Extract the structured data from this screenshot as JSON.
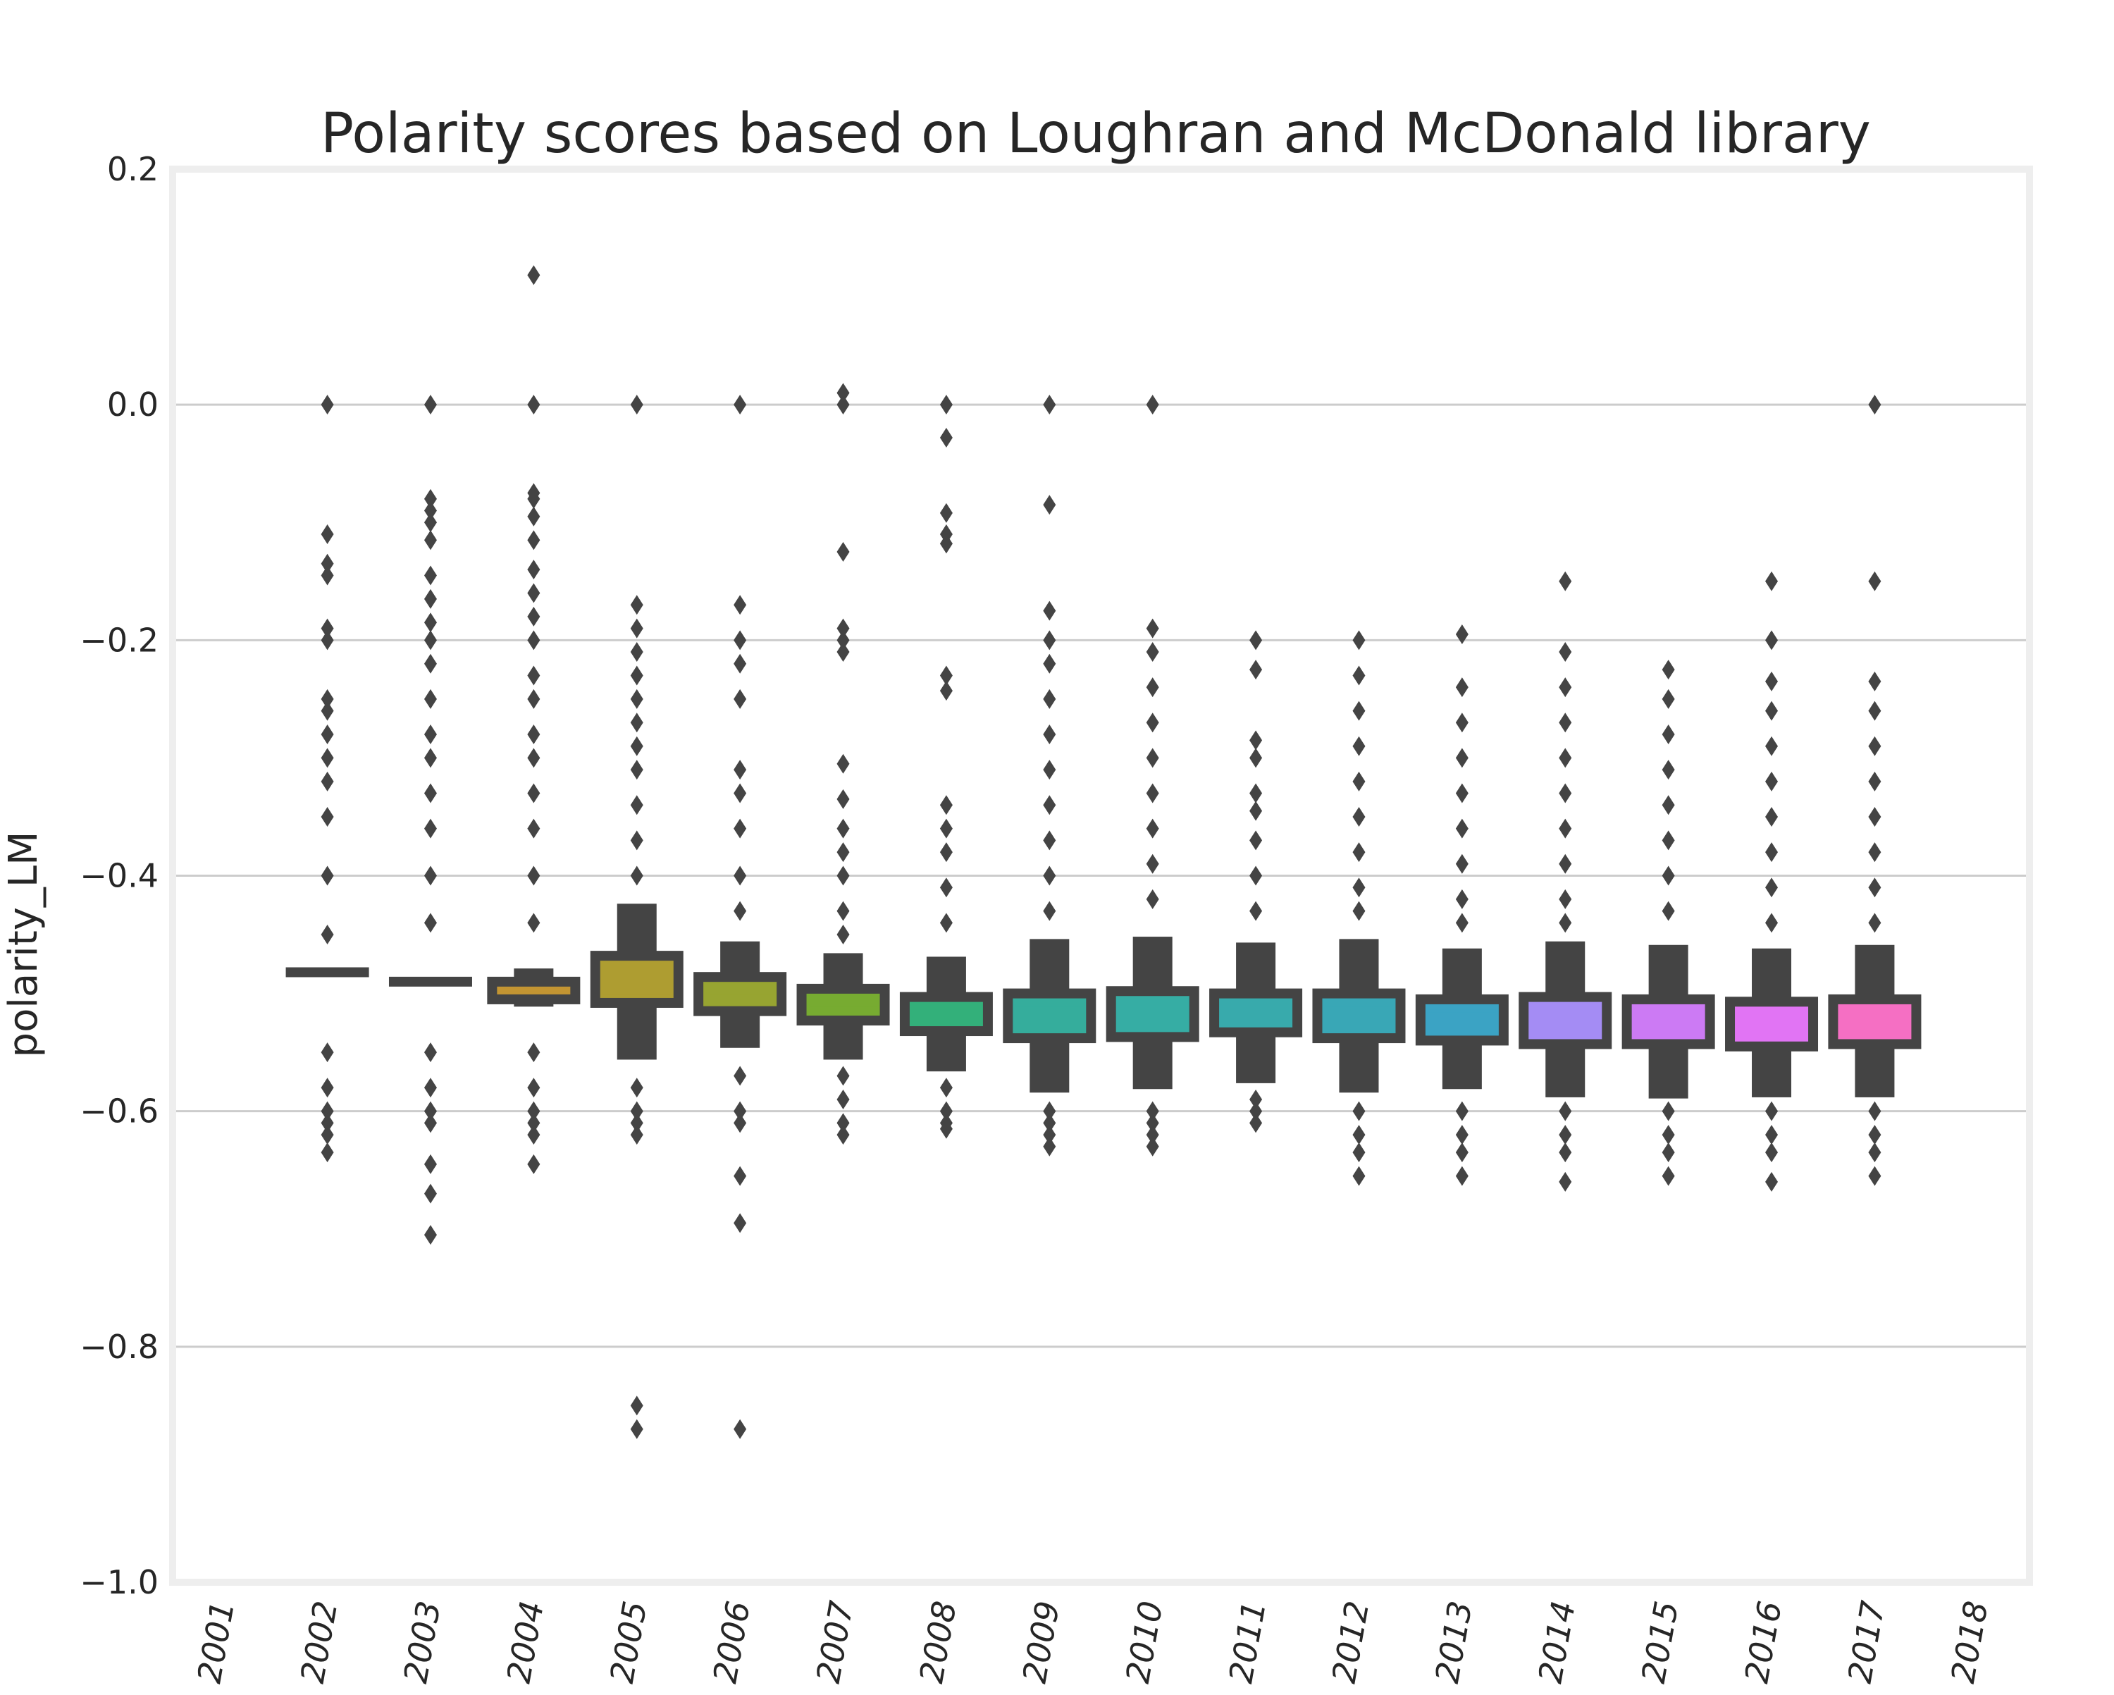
{
  "chart_data": {
    "type": "boxen",
    "title": "Polarity scores based on Loughran and McDonald library",
    "xlabel": "",
    "ylabel": "polarity_LM",
    "ylim": [
      -1.0,
      0.2
    ],
    "yticks": [
      0.2,
      0.0,
      -0.2,
      -0.4,
      -0.6,
      -0.8,
      -1.0
    ],
    "ytick_labels": [
      "0.2",
      "0.0",
      "−0.2",
      "−0.4",
      "−0.6",
      "−0.8",
      "−1.0"
    ],
    "grid": "horizontal",
    "categories": [
      "2001",
      "2002",
      "2003",
      "2004",
      "2005",
      "2006",
      "2007",
      "2008",
      "2009",
      "2010",
      "2011",
      "2012",
      "2013",
      "2014",
      "2015",
      "2016",
      "2017",
      "2018"
    ],
    "series": [
      {
        "category": "2001",
        "color": "#f77189",
        "boxes": [],
        "median": null,
        "outliers": []
      },
      {
        "category": "2002",
        "color": "#f7754f",
        "boxes": [
          [
            -0.482,
            -0.481
          ]
        ],
        "median": -0.482,
        "outliers": [
          0.0,
          -0.11,
          -0.135,
          -0.145,
          -0.19,
          -0.2,
          -0.25,
          -0.26,
          -0.28,
          -0.3,
          -0.32,
          -0.35,
          -0.4,
          -0.45,
          -0.55,
          -0.58,
          -0.6,
          -0.61,
          -0.62,
          -0.635
        ]
      },
      {
        "category": "2003",
        "color": "#dc8932",
        "boxes": [
          [
            -0.49,
            -0.489
          ]
        ],
        "median": -0.49,
        "outliers": [
          0.0,
          -0.08,
          -0.09,
          -0.1,
          -0.115,
          -0.145,
          -0.165,
          -0.185,
          -0.2,
          -0.22,
          -0.25,
          -0.28,
          -0.3,
          -0.33,
          -0.36,
          -0.4,
          -0.44,
          -0.55,
          -0.58,
          -0.6,
          -0.61,
          -0.645,
          -0.67,
          -0.705
        ]
      },
      {
        "category": "2004",
        "color": "#c39532",
        "boxes": [
          [
            -0.51,
            -0.48
          ],
          [
            -0.505,
            -0.49
          ]
        ],
        "median": -0.497,
        "outliers": [
          0.11,
          0.0,
          -0.075,
          -0.08,
          -0.095,
          -0.115,
          -0.14,
          -0.16,
          -0.18,
          -0.2,
          -0.23,
          -0.25,
          -0.28,
          -0.3,
          -0.33,
          -0.36,
          -0.4,
          -0.44,
          -0.55,
          -0.58,
          -0.6,
          -0.61,
          -0.62,
          -0.645
        ]
      },
      {
        "category": "2005",
        "color": "#ae9d31",
        "boxes": [
          [
            -0.555,
            -0.425
          ],
          [
            -0.508,
            -0.468
          ]
        ],
        "median": -0.5,
        "outliers": [
          0.0,
          -0.17,
          -0.19,
          -0.21,
          -0.23,
          -0.25,
          -0.27,
          -0.29,
          -0.31,
          -0.34,
          -0.37,
          -0.4,
          -0.58,
          -0.6,
          -0.61,
          -0.62,
          -0.85,
          -0.87
        ]
      },
      {
        "category": "2006",
        "color": "#97a431",
        "boxes": [
          [
            -0.545,
            -0.457
          ],
          [
            -0.515,
            -0.486
          ]
        ],
        "median": -0.5,
        "outliers": [
          0.0,
          -0.17,
          -0.2,
          -0.22,
          -0.25,
          -0.31,
          -0.33,
          -0.36,
          -0.4,
          -0.43,
          -0.57,
          -0.6,
          -0.61,
          -0.655,
          -0.695,
          -0.87
        ]
      },
      {
        "category": "2007",
        "color": "#77ab31",
        "boxes": [
          [
            -0.555,
            -0.467
          ],
          [
            -0.523,
            -0.496
          ]
        ],
        "median": -0.51,
        "outliers": [
          0.01,
          0.0,
          -0.125,
          -0.19,
          -0.2,
          -0.21,
          -0.305,
          -0.335,
          -0.36,
          -0.38,
          -0.4,
          -0.43,
          -0.45,
          -0.57,
          -0.59,
          -0.61,
          -0.62
        ]
      },
      {
        "category": "2008",
        "color": "#33b07a",
        "boxes": [
          [
            -0.565,
            -0.47
          ],
          [
            -0.532,
            -0.503
          ]
        ],
        "median": -0.52,
        "outliers": [
          0.0,
          -0.028,
          -0.092,
          -0.11,
          -0.118,
          -0.23,
          -0.243,
          -0.34,
          -0.36,
          -0.38,
          -0.41,
          -0.44,
          -0.58,
          -0.6,
          -0.61,
          -0.615
        ]
      },
      {
        "category": "2009",
        "color": "#35ad9c",
        "boxes": [
          [
            -0.583,
            -0.455
          ],
          [
            -0.538,
            -0.5
          ]
        ],
        "median": -0.51,
        "outliers": [
          0.0,
          -0.085,
          -0.175,
          -0.2,
          -0.22,
          -0.25,
          -0.28,
          -0.31,
          -0.34,
          -0.37,
          -0.4,
          -0.43,
          -0.6,
          -0.61,
          -0.62,
          -0.63
        ]
      },
      {
        "category": "2010",
        "color": "#36ada4",
        "boxes": [
          [
            -0.58,
            -0.453
          ],
          [
            -0.537,
            -0.498
          ]
        ],
        "median": -0.508,
        "outliers": [
          0.0,
          -0.19,
          -0.21,
          -0.24,
          -0.27,
          -0.3,
          -0.33,
          -0.36,
          -0.39,
          -0.42,
          -0.6,
          -0.61,
          -0.62,
          -0.63
        ]
      },
      {
        "category": "2011",
        "color": "#38aaac",
        "boxes": [
          [
            -0.575,
            -0.458
          ],
          [
            -0.533,
            -0.5
          ]
        ],
        "median": -0.51,
        "outliers": [
          -0.2,
          -0.225,
          -0.285,
          -0.3,
          -0.33,
          -0.345,
          -0.37,
          -0.4,
          -0.43,
          -0.59,
          -0.6,
          -0.61
        ]
      },
      {
        "category": "2012",
        "color": "#39a7b6",
        "boxes": [
          [
            -0.583,
            -0.455
          ],
          [
            -0.538,
            -0.5
          ]
        ],
        "median": -0.51,
        "outliers": [
          -0.2,
          -0.23,
          -0.26,
          -0.29,
          -0.32,
          -0.35,
          -0.38,
          -0.41,
          -0.43,
          -0.6,
          -0.62,
          -0.635,
          -0.655
        ]
      },
      {
        "category": "2013",
        "color": "#3ba3c4",
        "boxes": [
          [
            -0.58,
            -0.463
          ],
          [
            -0.54,
            -0.505
          ]
        ],
        "median": -0.515,
        "outliers": [
          -0.195,
          -0.24,
          -0.27,
          -0.3,
          -0.33,
          -0.36,
          -0.39,
          -0.42,
          -0.44,
          -0.6,
          -0.62,
          -0.635,
          -0.655
        ]
      },
      {
        "category": "2014",
        "color": "#a48cf4",
        "boxes": [
          [
            -0.587,
            -0.457
          ],
          [
            -0.543,
            -0.503
          ]
        ],
        "median": -0.512,
        "outliers": [
          -0.15,
          -0.21,
          -0.24,
          -0.27,
          -0.3,
          -0.33,
          -0.36,
          -0.39,
          -0.42,
          -0.44,
          -0.6,
          -0.62,
          -0.635,
          -0.66
        ]
      },
      {
        "category": "2015",
        "color": "#cc7af4",
        "boxes": [
          [
            -0.588,
            -0.46
          ],
          [
            -0.543,
            -0.505
          ]
        ],
        "median": -0.515,
        "outliers": [
          -0.225,
          -0.25,
          -0.28,
          -0.31,
          -0.34,
          -0.37,
          -0.4,
          -0.43,
          -0.6,
          -0.62,
          -0.635,
          -0.655
        ]
      },
      {
        "category": "2016",
        "color": "#e174f4",
        "boxes": [
          [
            -0.587,
            -0.463
          ],
          [
            -0.545,
            -0.507
          ]
        ],
        "median": -0.518,
        "outliers": [
          -0.15,
          -0.2,
          -0.235,
          -0.26,
          -0.29,
          -0.32,
          -0.35,
          -0.38,
          -0.41,
          -0.44,
          -0.6,
          -0.62,
          -0.635,
          -0.66
        ]
      },
      {
        "category": "2017",
        "color": "#f56fc3",
        "boxes": [
          [
            -0.587,
            -0.46
          ],
          [
            -0.543,
            -0.505
          ]
        ],
        "median": -0.515,
        "outliers": [
          0.0,
          -0.15,
          -0.235,
          -0.26,
          -0.29,
          -0.32,
          -0.35,
          -0.38,
          -0.41,
          -0.44,
          -0.6,
          -0.62,
          -0.635,
          -0.655
        ]
      },
      {
        "category": "2018",
        "color": "#f66cac",
        "boxes": [],
        "median": null,
        "outliers": []
      }
    ],
    "colors": {
      "edge": "#444444",
      "grid": "#cccccc",
      "frame": "#eeeeee",
      "text": "#262626"
    }
  }
}
